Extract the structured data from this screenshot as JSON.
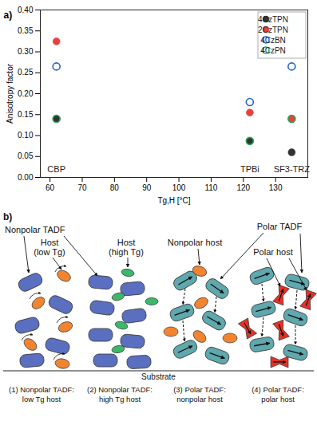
{
  "chart_data": {
    "type": "scatter",
    "panel_label": "a)",
    "x_label": "Tg,H [°C]",
    "y_label": "Anisotropy factor",
    "x": [
      62,
      122,
      135
    ],
    "series": [
      {
        "name": "4CzTPN",
        "color": "#333333",
        "marker": "circle",
        "values": [
          0.14,
          0.087,
          0.06
        ]
      },
      {
        "name": "2CzTPN",
        "color": "#e8413b",
        "marker": "circle",
        "values": [
          0.325,
          0.155,
          0.14
        ]
      },
      {
        "name": "4CzBN",
        "color": "#2563c9",
        "marker": "open_circle",
        "values": [
          0.265,
          0.18,
          0.265
        ]
      },
      {
        "name": "4CzPN",
        "color": "#2aa55a",
        "marker": "open_circle",
        "values": [
          0.14,
          0.087,
          0.14
        ]
      }
    ],
    "annotations": [
      {
        "text": "CBP",
        "x": 62
      },
      {
        "text": "TPBi",
        "x": 122
      },
      {
        "text": "SF3-TRZ",
        "x": 135
      }
    ],
    "xlim": [
      57,
      140
    ],
    "xticks": [
      60,
      70,
      80,
      90,
      100,
      110,
      120,
      130
    ],
    "ylim": [
      0,
      0.4
    ],
    "yticks": [
      {
        "value": 0,
        "label": "0.00"
      },
      {
        "value": 0.05,
        "label": "0.05"
      },
      {
        "value": 0.1,
        "label": "0.10"
      },
      {
        "value": 0.15,
        "label": "0.15"
      },
      {
        "value": 0.2,
        "label": "0.20"
      },
      {
        "value": 0.25,
        "label": "0.25"
      },
      {
        "value": 0.3,
        "label": "0.30"
      },
      {
        "value": 0.35,
        "label": "0.35"
      },
      {
        "value": 0.4,
        "label": "0.40"
      }
    ],
    "legend": "top-right",
    "grid": false
  },
  "diagram": {
    "panel_label": "b)",
    "labels": {
      "nonpolar_tadf": "Nonpolar TADF",
      "host_low_tg": [
        "Host",
        "(low Tg)"
      ],
      "host_high_tg": [
        "Host",
        "(high Tg)"
      ],
      "nonpolar_host": "Nonpolar host",
      "polar_tadf": "Polar TADF",
      "polar_host": "Polar host"
    },
    "substrate": "Substrate",
    "captions": [
      [
        "(1) Nonpolar TADF:",
        "low Tg host"
      ],
      [
        "(2) Nonpolar TADF:",
        "high Tg host"
      ],
      [
        "(3) Polar TADF:",
        "nonpolar host"
      ],
      [
        "(4) Polar TADF:",
        "polar host"
      ]
    ]
  }
}
